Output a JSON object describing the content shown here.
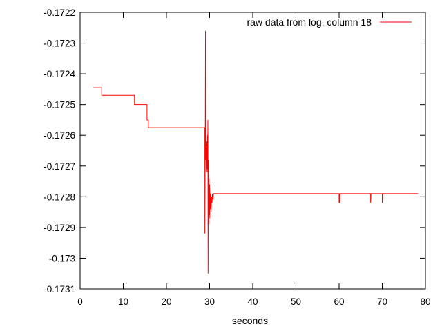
{
  "chart_data": {
    "type": "line",
    "title": "",
    "xlabel": "seconds",
    "ylabel": "",
    "xlim": [
      0,
      80
    ],
    "ylim": [
      -0.1731,
      -0.1722
    ],
    "grid": false,
    "legend_position": "top-right",
    "xticks": [
      0,
      10,
      20,
      30,
      40,
      50,
      60,
      70,
      80
    ],
    "xtick_labels": [
      "0",
      "10",
      "20",
      "30",
      "40",
      "50",
      "60",
      "70",
      "80"
    ],
    "yticks": [
      -0.1722,
      -0.1723,
      -0.1724,
      -0.1725,
      -0.1726,
      -0.1727,
      -0.1728,
      -0.1729,
      -0.173,
      -0.1731
    ],
    "ytick_labels": [
      "-0.1722",
      "-0.1723",
      "-0.1724",
      "-0.1725",
      "-0.1726",
      "-0.1727",
      "-0.1728",
      "-0.1729",
      "-0.173",
      "-0.1731"
    ],
    "series": [
      {
        "name": "raw data from log, column 18",
        "color": "#ff0000",
        "points": [
          [
            3.0,
            -0.172445
          ],
          [
            5.0,
            -0.172445
          ],
          [
            5.0,
            -0.17247
          ],
          [
            12.6,
            -0.17247
          ],
          [
            12.6,
            -0.1725
          ],
          [
            15.5,
            -0.1725
          ],
          [
            15.5,
            -0.17255
          ],
          [
            15.8,
            -0.17255
          ],
          [
            15.8,
            -0.172575
          ],
          [
            28.9,
            -0.172575
          ],
          [
            28.9,
            -0.17292
          ],
          [
            29.0,
            -0.172575
          ],
          [
            29.05,
            -0.17226
          ],
          [
            29.1,
            -0.17268
          ],
          [
            29.2,
            -0.17263
          ],
          [
            29.3,
            -0.17272
          ],
          [
            29.35,
            -0.17262
          ],
          [
            29.4,
            -0.17271
          ],
          [
            29.5,
            -0.1726
          ],
          [
            29.55,
            -0.17272
          ],
          [
            29.6,
            -0.17255
          ],
          [
            29.65,
            -0.17305
          ],
          [
            29.7,
            -0.17268
          ],
          [
            29.8,
            -0.17289
          ],
          [
            29.85,
            -0.17274
          ],
          [
            29.9,
            -0.17286
          ],
          [
            30.0,
            -0.17276
          ],
          [
            30.05,
            -0.17287
          ],
          [
            30.1,
            -0.17279
          ],
          [
            30.2,
            -0.17284
          ],
          [
            30.3,
            -0.17276
          ],
          [
            30.35,
            -0.17285
          ],
          [
            30.45,
            -0.1728
          ],
          [
            30.55,
            -0.17282
          ],
          [
            30.65,
            -0.17279
          ],
          [
            30.8,
            -0.17281
          ],
          [
            30.9,
            -0.17279
          ],
          [
            60.0,
            -0.17279
          ],
          [
            60.0,
            -0.17282
          ],
          [
            60.1,
            -0.17279
          ],
          [
            60.15,
            -0.17282
          ],
          [
            60.2,
            -0.17279
          ],
          [
            67.3,
            -0.17279
          ],
          [
            67.3,
            -0.17282
          ],
          [
            67.4,
            -0.17279
          ],
          [
            70.0,
            -0.17279
          ],
          [
            70.0,
            -0.17282
          ],
          [
            70.1,
            -0.17279
          ],
          [
            78.3,
            -0.17279
          ]
        ]
      }
    ]
  }
}
